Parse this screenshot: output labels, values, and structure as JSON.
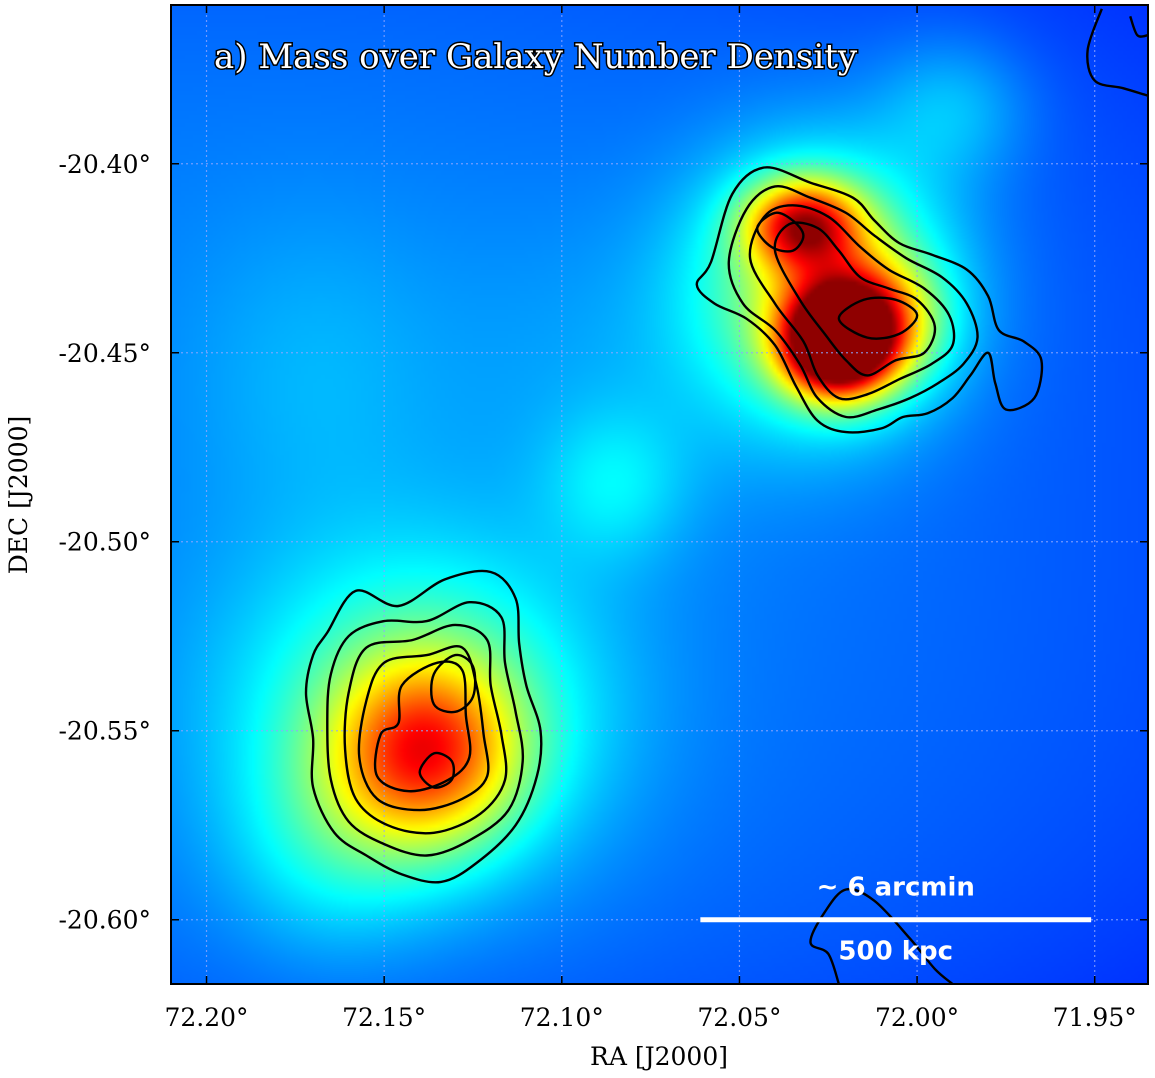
{
  "chart_data": {
    "type": "heatmap",
    "title": "a) Mass over Galaxy Number Density",
    "xlabel": "RA [J2000]",
    "ylabel": "DEC [J2000]",
    "xlim": [
      72.21,
      71.935
    ],
    "ylim": [
      -20.617,
      -20.358
    ],
    "x_ticks": [
      72.2,
      72.15,
      72.1,
      72.05,
      72.0,
      71.95
    ],
    "x_tick_labels": [
      "72.20°",
      "72.15°",
      "72.10°",
      "72.05°",
      "72.00°",
      "71.95°"
    ],
    "y_ticks": [
      -20.4,
      -20.45,
      -20.5,
      -20.55,
      -20.6
    ],
    "y_tick_labels": [
      "-20.40°",
      "-20.45°",
      "-20.50°",
      "-20.55°",
      "-20.60°"
    ],
    "grid": true,
    "colormap": "jet",
    "colors": {
      "background": "#0a14d8",
      "edge": "#0000a8"
    },
    "mass_peaks": [
      {
        "name": "north-east-peak-1",
        "ra": 72.023,
        "dec": -20.448,
        "amplitude": 0.95,
        "sigma_ra": 0.01,
        "sigma_dec": 0.009
      },
      {
        "name": "north-east-peak-2",
        "ra": 72.015,
        "dec": -20.442,
        "amplitude": 0.55,
        "sigma_ra": 0.013,
        "sigma_dec": 0.011
      },
      {
        "name": "north-east-peak-3",
        "ra": 72.032,
        "dec": -20.416,
        "amplitude": 0.62,
        "sigma_ra": 0.011,
        "sigma_dec": 0.008
      },
      {
        "name": "north-east-halo",
        "ra": 72.026,
        "dec": -20.432,
        "amplitude": 0.45,
        "sigma_ra": 0.024,
        "sigma_dec": 0.024
      },
      {
        "name": "south-west-peak",
        "ra": 72.138,
        "dec": -20.556,
        "amplitude": 0.52,
        "sigma_ra": 0.018,
        "sigma_dec": 0.017
      },
      {
        "name": "south-west-halo",
        "ra": 72.14,
        "dec": -20.545,
        "amplitude": 0.3,
        "sigma_ra": 0.035,
        "sigma_dec": 0.03
      },
      {
        "name": "south-west-tail",
        "ra": 72.165,
        "dec": -20.58,
        "amplitude": 0.12,
        "sigma_ra": 0.02,
        "sigma_dec": 0.02
      },
      {
        "name": "north-clump",
        "ra": 71.99,
        "dec": -20.385,
        "amplitude": 0.12,
        "sigma_ra": 0.015,
        "sigma_dec": 0.013
      },
      {
        "name": "middle-clump",
        "ra": 72.085,
        "dec": -20.485,
        "amplitude": 0.12,
        "sigma_ra": 0.014,
        "sigma_dec": 0.014
      },
      {
        "name": "west-clump",
        "ra": 72.17,
        "dec": -20.455,
        "amplitude": 0.06,
        "sigma_ra": 0.025,
        "sigma_dec": 0.03
      },
      {
        "name": "ridge",
        "ra": 72.08,
        "dec": -20.455,
        "amplitude": 0.05,
        "sigma_ra": 0.04,
        "sigma_dec": 0.03
      }
    ],
    "galaxy_contours": [
      {
        "group": "north-east",
        "points": [
          [
            72.058,
            -20.426
          ],
          [
            72.052,
            -20.408
          ],
          [
            72.043,
            -20.401
          ],
          [
            72.03,
            -20.405
          ],
          [
            72.018,
            -20.409
          ],
          [
            72.012,
            -20.415
          ],
          [
            72.005,
            -20.421
          ],
          [
            71.996,
            -20.424
          ],
          [
            71.986,
            -20.428
          ],
          [
            71.98,
            -20.435
          ],
          [
            71.977,
            -20.444
          ],
          [
            71.97,
            -20.447
          ],
          [
            71.965,
            -20.452
          ],
          [
            71.967,
            -20.462
          ],
          [
            71.975,
            -20.465
          ],
          [
            71.978,
            -20.458
          ],
          [
            71.98,
            -20.45
          ],
          [
            71.985,
            -20.456
          ],
          [
            71.99,
            -20.462
          ],
          [
            71.997,
            -20.466
          ],
          [
            72.004,
            -20.467
          ],
          [
            72.01,
            -20.47
          ],
          [
            72.02,
            -20.471
          ],
          [
            72.028,
            -20.468
          ],
          [
            72.034,
            -20.459
          ],
          [
            72.04,
            -20.448
          ],
          [
            72.048,
            -20.441
          ],
          [
            72.057,
            -20.437
          ],
          [
            72.062,
            -20.432
          ]
        ]
      },
      {
        "group": "north-east",
        "points": [
          [
            72.053,
            -20.426
          ],
          [
            72.048,
            -20.412
          ],
          [
            72.04,
            -20.406
          ],
          [
            72.03,
            -20.409
          ],
          [
            72.02,
            -20.413
          ],
          [
            72.012,
            -20.419
          ],
          [
            72.003,
            -20.425
          ],
          [
            71.993,
            -20.43
          ],
          [
            71.986,
            -20.437
          ],
          [
            71.983,
            -20.446
          ],
          [
            71.987,
            -20.453
          ],
          [
            71.994,
            -20.458
          ],
          [
            72.002,
            -20.462
          ],
          [
            72.011,
            -20.465
          ],
          [
            72.02,
            -20.467
          ],
          [
            72.028,
            -20.462
          ],
          [
            72.033,
            -20.453
          ],
          [
            72.04,
            -20.444
          ],
          [
            72.049,
            -20.437
          ]
        ]
      },
      {
        "group": "north-east",
        "points": [
          [
            72.047,
            -20.425
          ],
          [
            72.043,
            -20.414
          ],
          [
            72.035,
            -20.411
          ],
          [
            72.025,
            -20.414
          ],
          [
            72.016,
            -20.422
          ],
          [
            72.008,
            -20.428
          ],
          [
            71.998,
            -20.433
          ],
          [
            71.991,
            -20.44
          ],
          [
            71.99,
            -20.448
          ],
          [
            71.996,
            -20.453
          ],
          [
            72.005,
            -20.457
          ],
          [
            72.014,
            -20.461
          ],
          [
            72.022,
            -20.462
          ],
          [
            72.028,
            -20.456
          ],
          [
            72.032,
            -20.447
          ],
          [
            72.04,
            -20.437
          ]
        ]
      },
      {
        "group": "north-east",
        "points": [
          [
            72.04,
            -20.423
          ],
          [
            72.036,
            -20.416
          ],
          [
            72.028,
            -20.417
          ],
          [
            72.022,
            -20.423
          ],
          [
            72.016,
            -20.43
          ],
          [
            72.008,
            -20.433
          ],
          [
            72.0,
            -20.436
          ],
          [
            71.995,
            -20.443
          ],
          [
            71.998,
            -20.45
          ],
          [
            72.006,
            -20.452
          ],
          [
            72.014,
            -20.456
          ],
          [
            72.02,
            -20.452
          ],
          [
            72.026,
            -20.445
          ],
          [
            72.033,
            -20.436
          ]
        ]
      },
      {
        "group": "north-east",
        "points": [
          [
            72.045,
            -20.417
          ],
          [
            72.04,
            -20.413
          ],
          [
            72.035,
            -20.415
          ],
          [
            72.032,
            -20.419
          ],
          [
            72.035,
            -20.423
          ],
          [
            72.041,
            -20.422
          ]
        ]
      },
      {
        "group": "north-east",
        "points": [
          [
            72.022,
            -20.441
          ],
          [
            72.015,
            -20.436
          ],
          [
            72.006,
            -20.436
          ],
          [
            72.0,
            -20.44
          ],
          [
            72.005,
            -20.445
          ],
          [
            72.014,
            -20.446
          ]
        ]
      },
      {
        "group": "south-west",
        "points": [
          [
            72.166,
            -20.524
          ],
          [
            72.158,
            -20.513
          ],
          [
            72.146,
            -20.517
          ],
          [
            72.133,
            -20.51
          ],
          [
            72.12,
            -20.508
          ],
          [
            72.113,
            -20.515
          ],
          [
            72.112,
            -20.527
          ],
          [
            72.11,
            -20.538
          ],
          [
            72.106,
            -20.55
          ],
          [
            72.107,
            -20.562
          ],
          [
            72.113,
            -20.575
          ],
          [
            72.124,
            -20.585
          ],
          [
            72.134,
            -20.59
          ],
          [
            72.145,
            -20.588
          ],
          [
            72.155,
            -20.583
          ],
          [
            72.164,
            -20.577
          ],
          [
            72.17,
            -20.565
          ],
          [
            72.17,
            -20.552
          ],
          [
            72.172,
            -20.54
          ],
          [
            72.17,
            -20.53
          ]
        ]
      },
      {
        "group": "south-west",
        "points": [
          [
            72.16,
            -20.525
          ],
          [
            72.15,
            -20.521
          ],
          [
            72.138,
            -20.521
          ],
          [
            72.126,
            -20.516
          ],
          [
            72.117,
            -20.52
          ],
          [
            72.116,
            -20.532
          ],
          [
            72.113,
            -20.545
          ],
          [
            72.111,
            -20.558
          ],
          [
            72.115,
            -20.571
          ],
          [
            72.126,
            -20.579
          ],
          [
            72.138,
            -20.583
          ],
          [
            72.15,
            -20.58
          ],
          [
            72.16,
            -20.574
          ],
          [
            72.165,
            -20.563
          ],
          [
            72.166,
            -20.548
          ],
          [
            72.165,
            -20.535
          ]
        ]
      },
      {
        "group": "south-west",
        "points": [
          [
            72.155,
            -20.528
          ],
          [
            72.142,
            -20.526
          ],
          [
            72.13,
            -20.522
          ],
          [
            72.121,
            -20.526
          ],
          [
            72.12,
            -20.538
          ],
          [
            72.117,
            -20.551
          ],
          [
            72.116,
            -20.563
          ],
          [
            72.123,
            -20.572
          ],
          [
            72.136,
            -20.577
          ],
          [
            72.149,
            -20.575
          ],
          [
            72.158,
            -20.568
          ],
          [
            72.161,
            -20.555
          ],
          [
            72.16,
            -20.54
          ]
        ]
      },
      {
        "group": "south-west",
        "points": [
          [
            72.15,
            -20.532
          ],
          [
            72.138,
            -20.53
          ],
          [
            72.128,
            -20.528
          ],
          [
            72.124,
            -20.538
          ],
          [
            72.122,
            -20.551
          ],
          [
            72.121,
            -20.562
          ],
          [
            72.128,
            -20.568
          ],
          [
            72.14,
            -20.571
          ],
          [
            72.152,
            -20.568
          ],
          [
            72.157,
            -20.557
          ],
          [
            72.155,
            -20.542
          ]
        ]
      },
      {
        "group": "south-west",
        "points": [
          [
            72.145,
            -20.538
          ],
          [
            72.135,
            -20.532
          ],
          [
            72.128,
            -20.534
          ],
          [
            72.127,
            -20.546
          ],
          [
            72.126,
            -20.557
          ],
          [
            72.132,
            -20.563
          ],
          [
            72.143,
            -20.566
          ],
          [
            72.152,
            -20.562
          ],
          [
            72.151,
            -20.551
          ],
          [
            72.146,
            -20.548
          ]
        ]
      },
      {
        "group": "south-west",
        "points": [
          [
            72.136,
            -20.535
          ],
          [
            72.13,
            -20.53
          ],
          [
            72.125,
            -20.533
          ],
          [
            72.125,
            -20.541
          ],
          [
            72.13,
            -20.545
          ],
          [
            72.136,
            -20.543
          ]
        ]
      },
      {
        "group": "south-west",
        "points": [
          [
            72.14,
            -20.561
          ],
          [
            72.136,
            -20.556
          ],
          [
            72.131,
            -20.558
          ],
          [
            72.131,
            -20.563
          ],
          [
            72.136,
            -20.565
          ]
        ]
      },
      {
        "group": "north-east-corner",
        "points": [
          [
            71.948,
            -20.359
          ],
          [
            71.952,
            -20.37
          ],
          [
            71.95,
            -20.378
          ],
          [
            71.942,
            -20.38
          ],
          [
            71.935,
            -20.382
          ]
        ]
      },
      {
        "group": "north-east-corner",
        "points": [
          [
            71.94,
            -20.361
          ],
          [
            71.938,
            -20.366
          ],
          [
            71.935,
            -20.366
          ]
        ]
      },
      {
        "group": "south-scalebar",
        "points": [
          [
            72.022,
            -20.617
          ],
          [
            72.025,
            -20.609
          ],
          [
            72.03,
            -20.606
          ],
          [
            72.026,
            -20.598
          ],
          [
            72.02,
            -20.592
          ],
          [
            72.012,
            -20.595
          ],
          [
            72.002,
            -20.605
          ],
          [
            71.995,
            -20.613
          ],
          [
            71.99,
            -20.617
          ]
        ]
      }
    ],
    "scalebar": {
      "top_label": "~ 6 arcmin",
      "bottom_label": "500 kpc",
      "ra_start": 72.061,
      "ra_end": 71.951,
      "dec": -20.6
    }
  }
}
